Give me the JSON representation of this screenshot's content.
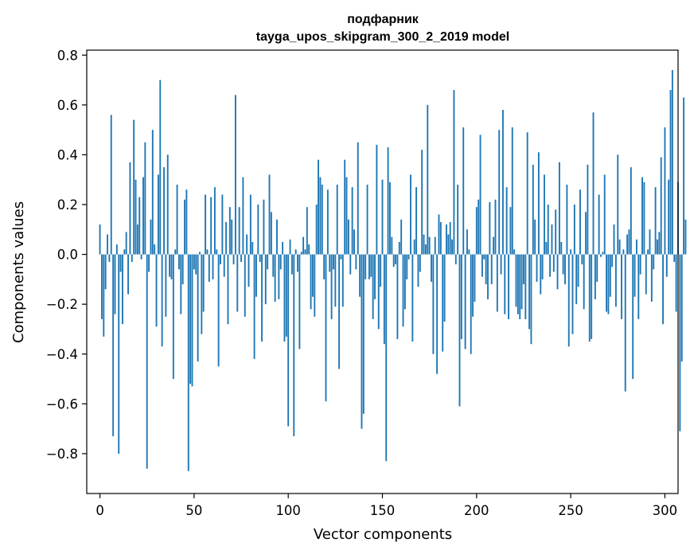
{
  "chart_data": {
    "type": "bar",
    "title": "подфарник",
    "subtitle": "tayga_upos_skipgram_300_2_2019 model",
    "xlabel": "Vector components",
    "ylabel": "Components values",
    "xlim": [
      -7,
      307
    ],
    "ylim": [
      -0.96,
      0.82
    ],
    "xticks": [
      0,
      50,
      100,
      150,
      200,
      250,
      300
    ],
    "yticks": [
      -0.8,
      -0.6,
      -0.4,
      -0.2,
      0.0,
      0.2,
      0.4,
      0.6,
      0.8
    ],
    "xtick_labels": [
      "0",
      "50",
      "100",
      "150",
      "200",
      "250",
      "300"
    ],
    "ytick_labels": [
      "−0.8",
      "−0.6",
      "−0.4",
      "−0.2",
      "0.0",
      "0.2",
      "0.4",
      "0.6",
      "0.8"
    ],
    "bar_color": "#1f77b4",
    "grid": false,
    "series": [
      {
        "values": [
          0.12,
          -0.26,
          -0.33,
          -0.14,
          0.08,
          -0.03,
          0.56,
          -0.73,
          -0.24,
          0.04,
          -0.8,
          -0.07,
          -0.28,
          0.02,
          0.09,
          -0.16,
          0.37,
          -0.03,
          0.54,
          0.3,
          0.12,
          0.23,
          -0.02,
          0.31,
          0.45,
          -0.86,
          -0.07,
          0.14,
          0.5,
          0.04,
          -0.29,
          0.32,
          0.7,
          -0.37,
          0.35,
          -0.25,
          0.4,
          -0.09,
          -0.1,
          -0.5,
          0.02,
          0.28,
          -0.06,
          -0.24,
          -0.12,
          0.22,
          0.26,
          -0.87,
          -0.52,
          -0.53,
          -0.06,
          -0.08,
          -0.43,
          0.01,
          -0.32,
          -0.23,
          0.24,
          0.02,
          -0.11,
          0.23,
          -0.1,
          0.27,
          0.02,
          -0.45,
          -0.04,
          0.24,
          -0.09,
          0.13,
          -0.28,
          0.19,
          0.14,
          -0.04,
          0.64,
          -0.23,
          0.19,
          -0.03,
          0.31,
          -0.25,
          0.08,
          -0.13,
          0.24,
          0.05,
          -0.42,
          -0.17,
          0.2,
          -0.03,
          -0.35,
          0.22,
          -0.2,
          -0.06,
          0.32,
          0.17,
          -0.09,
          -0.19,
          0.14,
          -0.18,
          -0.06,
          0.05,
          -0.35,
          -0.33,
          -0.69,
          0.06,
          -0.08,
          -0.73,
          0.02,
          -0.07,
          -0.38,
          0.01,
          0.07,
          0.02,
          0.19,
          0.04,
          -0.22,
          -0.17,
          -0.25,
          0.2,
          0.38,
          0.31,
          0.28,
          -0.1,
          -0.59,
          0.26,
          -0.07,
          -0.26,
          -0.06,
          -0.21,
          0.28,
          -0.46,
          -0.02,
          -0.21,
          0.38,
          0.31,
          0.14,
          -0.08,
          0.27,
          0.1,
          -0.06,
          0.45,
          -0.17,
          -0.7,
          -0.64,
          -0.1,
          0.28,
          -0.1,
          -0.09,
          -0.26,
          -0.18,
          0.44,
          -0.3,
          -0.13,
          0.3,
          -0.36,
          -0.83,
          0.43,
          0.29,
          0.07,
          -0.05,
          -0.04,
          -0.34,
          0.05,
          0.14,
          -0.29,
          -0.22,
          -0.1,
          -0.02,
          0.32,
          -0.35,
          0.06,
          0.27,
          -0.13,
          -0.07,
          0.42,
          0.08,
          0.04,
          0.6,
          0.07,
          -0.11,
          -0.4,
          0.07,
          -0.48,
          0.16,
          0.13,
          -0.39,
          -0.27,
          0.12,
          0.08,
          0.13,
          0.06,
          0.66,
          -0.04,
          0.28,
          -0.61,
          -0.34,
          0.51,
          -0.38,
          0.1,
          0.02,
          -0.4,
          -0.25,
          -0.19,
          0.19,
          0.22,
          0.48,
          -0.09,
          -0.02,
          -0.12,
          -0.18,
          0.21,
          -0.12,
          0.07,
          0.22,
          -0.23,
          0.5,
          -0.08,
          0.58,
          -0.24,
          0.27,
          -0.26,
          0.19,
          0.51,
          0.02,
          -0.21,
          -0.24,
          -0.26,
          -0.22,
          -0.12,
          -0.26,
          0.49,
          -0.3,
          -0.36,
          0.36,
          0.14,
          -0.11,
          0.41,
          -0.16,
          -0.1,
          0.32,
          0.05,
          0.2,
          -0.09,
          0.12,
          -0.07,
          0.18,
          -0.14,
          0.37,
          0.05,
          -0.08,
          -0.12,
          0.28,
          -0.37,
          0.02,
          -0.32,
          0.2,
          -0.2,
          -0.13,
          0.26,
          -0.04,
          -0.22,
          0.17,
          0.36,
          -0.35,
          -0.34,
          0.57,
          -0.18,
          -0.11,
          0.24,
          -0.01,
          0.01,
          0.32,
          -0.23,
          -0.24,
          -0.17,
          -0.05,
          0.12,
          -0.21,
          0.4,
          0.06,
          -0.26,
          0.02,
          -0.55,
          0.08,
          0.1,
          0.35,
          -0.5,
          -0.17,
          0.06,
          -0.26,
          -0.08,
          0.31,
          0.29,
          -0.16,
          0.02,
          0.1,
          -0.19,
          -0.06,
          0.27,
          0.06,
          0.09,
          0.39,
          -0.28,
          0.51,
          -0.09,
          0.3,
          0.66,
          0.74,
          -0.03,
          -0.23,
          0.29,
          -0.71,
          -0.43,
          0.63,
          0.14
        ]
      }
    ]
  }
}
